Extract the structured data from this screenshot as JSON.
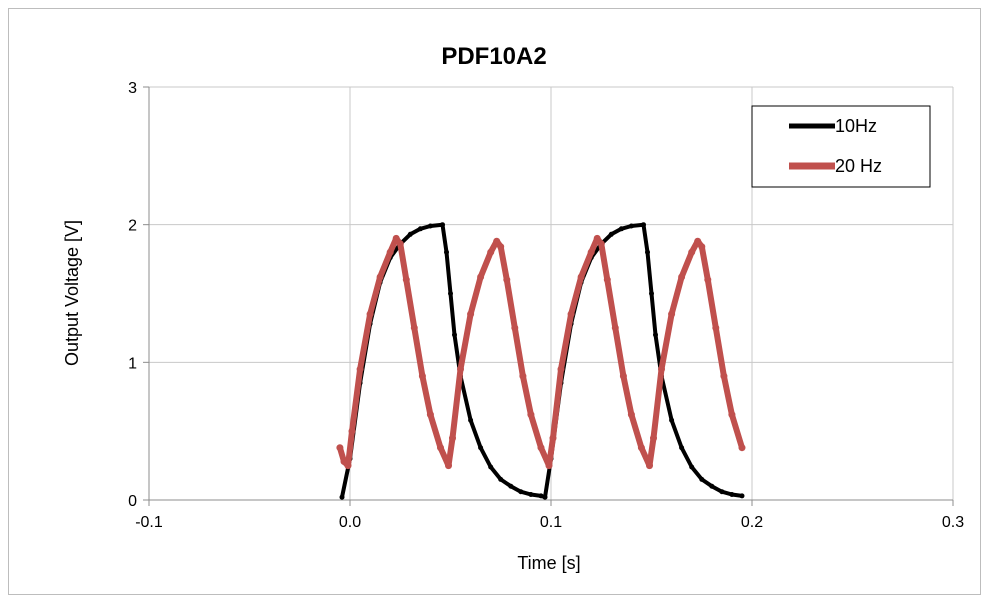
{
  "chart_data": {
    "type": "line",
    "title": "PDF10A2",
    "xlabel": "Time [s]",
    "ylabel": "Output Voltage [V]",
    "xlim": [
      -0.1,
      0.3
    ],
    "ylim": [
      0,
      3
    ],
    "xticks": [
      -0.1,
      0.0,
      0.1,
      0.2,
      0.3
    ],
    "xtick_labels": [
      "-0.1",
      "0.0",
      "0.1",
      "0.2",
      "0.3"
    ],
    "yticks": [
      0,
      1,
      2,
      3
    ],
    "ytick_labels": [
      "0",
      "1",
      "2",
      "3"
    ],
    "grid": true,
    "legend_position": "top-right",
    "series": [
      {
        "name": "10Hz",
        "color": "#000000",
        "points": [
          [
            -0.004,
            0.02
          ],
          [
            0.0,
            0.3
          ],
          [
            0.005,
            0.85
          ],
          [
            0.01,
            1.28
          ],
          [
            0.015,
            1.58
          ],
          [
            0.02,
            1.76
          ],
          [
            0.025,
            1.86
          ],
          [
            0.03,
            1.93
          ],
          [
            0.035,
            1.97
          ],
          [
            0.04,
            1.99
          ],
          [
            0.046,
            2.0
          ],
          [
            0.048,
            1.8
          ],
          [
            0.05,
            1.5
          ],
          [
            0.052,
            1.2
          ],
          [
            0.055,
            0.9
          ],
          [
            0.06,
            0.58
          ],
          [
            0.065,
            0.38
          ],
          [
            0.07,
            0.24
          ],
          [
            0.075,
            0.15
          ],
          [
            0.08,
            0.1
          ],
          [
            0.085,
            0.06
          ],
          [
            0.09,
            0.04
          ],
          [
            0.095,
            0.03
          ],
          [
            0.097,
            0.02
          ],
          [
            0.1,
            0.3
          ],
          [
            0.105,
            0.85
          ],
          [
            0.11,
            1.28
          ],
          [
            0.115,
            1.58
          ],
          [
            0.12,
            1.76
          ],
          [
            0.125,
            1.86
          ],
          [
            0.13,
            1.93
          ],
          [
            0.135,
            1.97
          ],
          [
            0.14,
            1.99
          ],
          [
            0.146,
            2.0
          ],
          [
            0.148,
            1.8
          ],
          [
            0.15,
            1.5
          ],
          [
            0.152,
            1.2
          ],
          [
            0.155,
            0.9
          ],
          [
            0.16,
            0.58
          ],
          [
            0.165,
            0.38
          ],
          [
            0.17,
            0.24
          ],
          [
            0.175,
            0.15
          ],
          [
            0.18,
            0.1
          ],
          [
            0.185,
            0.06
          ],
          [
            0.19,
            0.04
          ],
          [
            0.195,
            0.03
          ]
        ]
      },
      {
        "name": "20 Hz",
        "color": "#c0504d",
        "points": [
          [
            -0.005,
            0.38
          ],
          [
            -0.003,
            0.28
          ],
          [
            -0.001,
            0.25
          ],
          [
            0.001,
            0.5
          ],
          [
            0.005,
            0.95
          ],
          [
            0.01,
            1.35
          ],
          [
            0.015,
            1.62
          ],
          [
            0.02,
            1.8
          ],
          [
            0.023,
            1.9
          ],
          [
            0.025,
            1.86
          ],
          [
            0.028,
            1.6
          ],
          [
            0.032,
            1.25
          ],
          [
            0.036,
            0.9
          ],
          [
            0.04,
            0.62
          ],
          [
            0.045,
            0.38
          ],
          [
            0.049,
            0.25
          ],
          [
            0.051,
            0.45
          ],
          [
            0.055,
            0.95
          ],
          [
            0.06,
            1.35
          ],
          [
            0.065,
            1.62
          ],
          [
            0.07,
            1.8
          ],
          [
            0.073,
            1.88
          ],
          [
            0.075,
            1.84
          ],
          [
            0.078,
            1.6
          ],
          [
            0.082,
            1.25
          ],
          [
            0.086,
            0.9
          ],
          [
            0.09,
            0.62
          ],
          [
            0.095,
            0.38
          ],
          [
            0.099,
            0.25
          ],
          [
            0.101,
            0.45
          ],
          [
            0.105,
            0.95
          ],
          [
            0.11,
            1.35
          ],
          [
            0.115,
            1.62
          ],
          [
            0.12,
            1.8
          ],
          [
            0.123,
            1.9
          ],
          [
            0.125,
            1.86
          ],
          [
            0.128,
            1.6
          ],
          [
            0.132,
            1.25
          ],
          [
            0.136,
            0.9
          ],
          [
            0.14,
            0.62
          ],
          [
            0.145,
            0.38
          ],
          [
            0.149,
            0.25
          ],
          [
            0.151,
            0.45
          ],
          [
            0.155,
            0.95
          ],
          [
            0.16,
            1.35
          ],
          [
            0.165,
            1.62
          ],
          [
            0.17,
            1.8
          ],
          [
            0.173,
            1.88
          ],
          [
            0.175,
            1.84
          ],
          [
            0.178,
            1.6
          ],
          [
            0.182,
            1.25
          ],
          [
            0.186,
            0.9
          ],
          [
            0.19,
            0.62
          ],
          [
            0.195,
            0.38
          ]
        ]
      }
    ]
  }
}
